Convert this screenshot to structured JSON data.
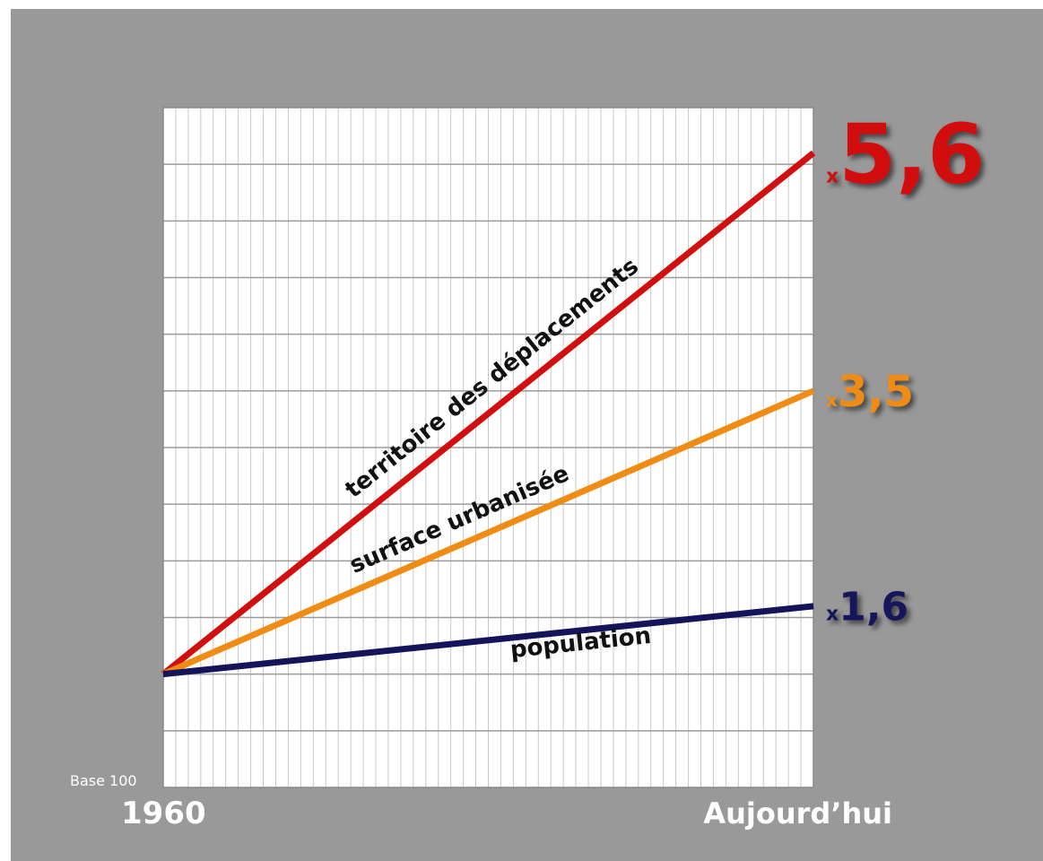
{
  "chart_data": {
    "type": "line",
    "categories": [
      "1960",
      "Aujourd’hui"
    ],
    "series": [
      {
        "name": "territoire des déplacements",
        "color": "#d10f0f",
        "values": [
          1,
          5.6
        ],
        "value_labels": [
          null,
          "x5,6"
        ]
      },
      {
        "name": "surface urbanisée",
        "color": "#f08c14",
        "values": [
          1,
          3.5
        ],
        "value_labels": [
          null,
          "x3,5"
        ]
      },
      {
        "name": "population",
        "color": "#14145a",
        "values": [
          1,
          1.6
        ],
        "value_labels": [
          null,
          "x1,6"
        ]
      }
    ],
    "ylim": [
      0,
      6
    ],
    "annotation": "Base 100",
    "grid": true
  }
}
